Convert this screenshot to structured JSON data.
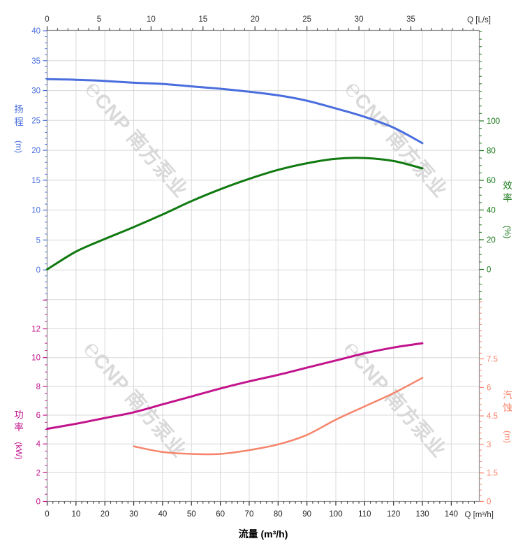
{
  "watermark": {
    "logo": "℮",
    "brand": "CNP",
    "text": "南方泵业"
  },
  "chart_data": {
    "type": "line",
    "title": "",
    "x_axis": {
      "bottom_label": "流量 (m³/h)",
      "bottom_unit_label": "Q [m³/h]",
      "top_unit_label": "Q [L/s]",
      "ticks_bottom": [
        0,
        10,
        20,
        30,
        40,
        50,
        60,
        70,
        80,
        90,
        100,
        110,
        120,
        130,
        140
      ],
      "ticks_top": [
        0,
        5,
        10,
        15,
        20,
        25,
        30,
        35
      ],
      "range_bottom_m3h": [
        0,
        150
      ],
      "grid": true
    },
    "y_axes": {
      "head": {
        "title_chars": "扬程",
        "title_unit": "(m)",
        "color": "#4a6edd",
        "ticks": [
          0,
          5,
          10,
          15,
          20,
          25,
          30,
          35,
          40
        ],
        "range": [
          0,
          40
        ],
        "side": "left",
        "panel": "top"
      },
      "efficiency": {
        "title_chars": "效率",
        "title_unit": "(%)",
        "color": "#1b7a1b",
        "ticks": [
          0,
          20,
          40,
          60,
          80,
          100
        ],
        "range": [
          0,
          100
        ],
        "side": "right",
        "panel": "top"
      },
      "power": {
        "title_chars": "功率",
        "title_unit": "(kW)",
        "color": "#c2138c",
        "ticks": [
          0,
          2,
          4,
          6,
          8,
          10,
          12
        ],
        "range": [
          0,
          12
        ],
        "side": "left",
        "panel": "bottom"
      },
      "npsh": {
        "title_chars": "汽蚀",
        "title_unit": "(m)",
        "color": "#f6846b",
        "ticks": [
          0,
          1.5,
          3,
          4.5,
          6,
          7.5
        ],
        "range": [
          0,
          7.5
        ],
        "side": "right",
        "panel": "bottom"
      }
    },
    "series": [
      {
        "name": "head-curve",
        "axis": "head",
        "color": "#4a6edd",
        "width": 3,
        "x": [
          0,
          10,
          20,
          30,
          40,
          50,
          60,
          70,
          80,
          90,
          100,
          110,
          120,
          130
        ],
        "y": [
          31.9,
          31.8,
          31.6,
          31.3,
          31.1,
          30.7,
          30.3,
          29.8,
          29.2,
          28.3,
          27.0,
          25.6,
          23.8,
          21.2
        ]
      },
      {
        "name": "efficiency-curve",
        "axis": "efficiency",
        "color": "#117a11",
        "width": 3,
        "x": [
          0,
          10,
          20,
          30,
          40,
          50,
          60,
          70,
          80,
          90,
          100,
          110,
          120,
          130
        ],
        "y": [
          0,
          12,
          20.5,
          28.5,
          37,
          46,
          54,
          61,
          67,
          71.5,
          74.5,
          75,
          73,
          68
        ]
      },
      {
        "name": "power-curve",
        "axis": "power",
        "color": "#c2138c",
        "width": 3,
        "x": [
          0,
          10,
          20,
          30,
          40,
          50,
          60,
          70,
          80,
          90,
          100,
          110,
          120,
          130
        ],
        "y": [
          5.05,
          5.4,
          5.8,
          6.2,
          6.75,
          7.3,
          7.85,
          8.35,
          8.8,
          9.3,
          9.8,
          10.3,
          10.7,
          11.0
        ]
      },
      {
        "name": "npsh-curve",
        "axis": "npsh",
        "color": "#f6846b",
        "width": 2.5,
        "x": [
          30,
          40,
          50,
          60,
          70,
          80,
          90,
          100,
          110,
          120,
          130
        ],
        "y": [
          2.9,
          2.6,
          2.5,
          2.5,
          2.7,
          3.0,
          3.5,
          4.3,
          5.0,
          5.7,
          6.5
        ]
      }
    ],
    "legend": null,
    "grid_color": "#d8d8d8",
    "border_color": "#8c8c8c"
  }
}
